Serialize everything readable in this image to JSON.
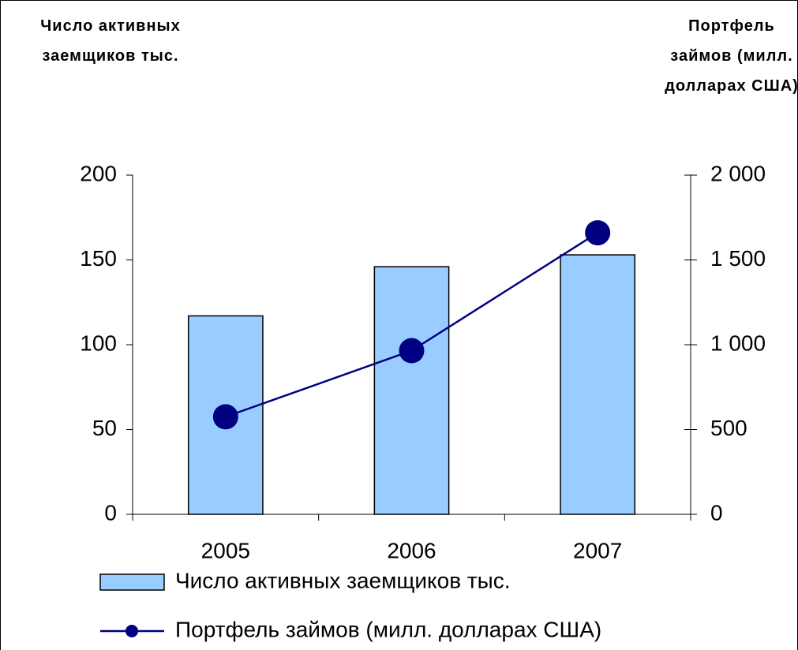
{
  "chart_data": {
    "type": "bar_line",
    "y_label": "Число активных заемщиков тыс.",
    "y2_label": "Портфель займов (милл. долларах США)",
    "categories": [
      "2005",
      "2006",
      "2007"
    ],
    "series": [
      {
        "name": "Число активных заемщиков тыс.",
        "type": "bar",
        "color": "#99ccff",
        "axis": "y",
        "values": [
          117,
          146,
          153
        ]
      },
      {
        "name": "Портфель займов (милл. долларах США)",
        "type": "line",
        "color": "#000080",
        "axis": "y2",
        "values": [
          575,
          965,
          1660
        ]
      }
    ],
    "ylim": [
      0,
      200
    ],
    "yticks": [
      0,
      50,
      100,
      150,
      200
    ],
    "y2lim": [
      0,
      2000
    ],
    "y2ticks": [
      0,
      500,
      {
        "value": 1000,
        "label": "1 000"
      },
      {
        "value": 1500,
        "label": "1 500"
      },
      {
        "value": 2000,
        "label": "2 000"
      }
    ],
    "legend": "bottom",
    "grid": false
  }
}
